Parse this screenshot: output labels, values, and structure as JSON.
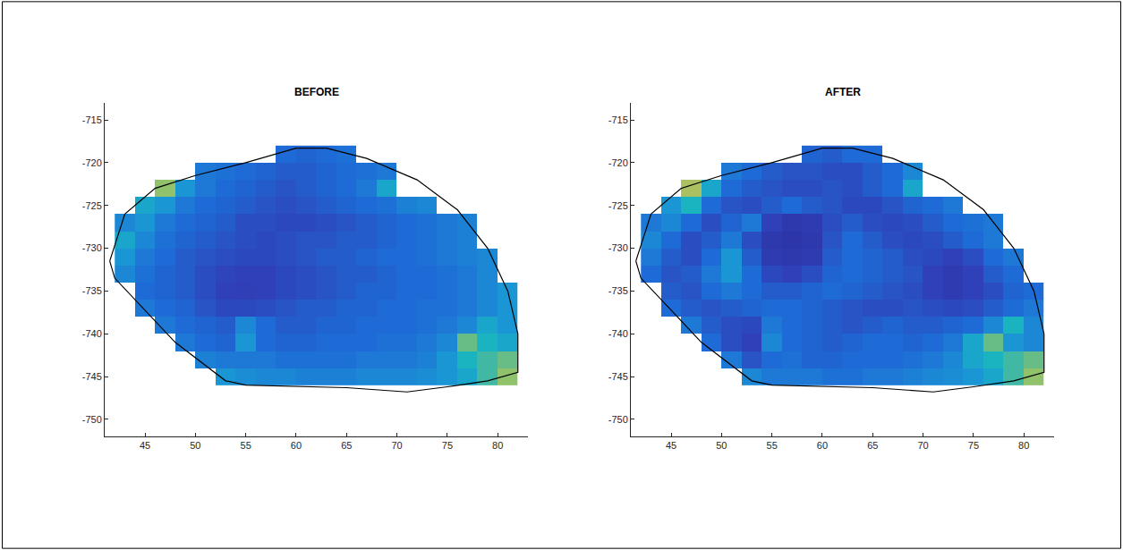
{
  "chart_data": [
    {
      "type": "heatmap",
      "title": "BEFORE",
      "x": [
        43,
        45,
        47,
        49,
        51,
        53,
        55,
        57,
        59,
        61,
        63,
        65,
        67,
        69,
        71,
        73,
        75,
        77,
        79,
        81
      ],
      "y": [
        -719,
        -721,
        -723,
        -725,
        -727,
        -729,
        -731,
        -733,
        -735,
        -737,
        -739,
        -741,
        -743,
        -745
      ],
      "z": [
        [
          null,
          null,
          null,
          null,
          null,
          null,
          null,
          null,
          0.3,
          0.28,
          0.3,
          0.32,
          null,
          null,
          null,
          null,
          null,
          null,
          null,
          null
        ],
        [
          null,
          null,
          null,
          null,
          0.35,
          0.32,
          0.3,
          0.28,
          0.25,
          0.25,
          0.28,
          0.3,
          0.32,
          0.35,
          null,
          null,
          null,
          null,
          null,
          null
        ],
        [
          null,
          null,
          0.7,
          0.45,
          0.35,
          0.3,
          0.28,
          0.25,
          0.22,
          0.25,
          0.28,
          0.3,
          0.35,
          0.5,
          null,
          null,
          null,
          null,
          null,
          null
        ],
        [
          null,
          0.5,
          0.45,
          0.35,
          0.3,
          0.28,
          0.25,
          0.22,
          0.2,
          0.22,
          0.25,
          0.28,
          0.3,
          0.32,
          0.38,
          0.4,
          null,
          null,
          null,
          null
        ],
        [
          0.4,
          0.45,
          0.35,
          0.3,
          0.28,
          0.25,
          0.2,
          0.2,
          0.18,
          0.18,
          0.2,
          0.22,
          0.25,
          0.28,
          0.3,
          0.32,
          0.35,
          0.38,
          null,
          null
        ],
        [
          0.5,
          0.4,
          0.32,
          0.28,
          0.25,
          0.22,
          0.2,
          0.18,
          0.2,
          0.22,
          0.22,
          0.25,
          0.25,
          0.28,
          0.3,
          0.32,
          0.35,
          0.38,
          null,
          null
        ],
        [
          0.45,
          0.35,
          0.3,
          0.25,
          0.22,
          0.2,
          0.18,
          0.18,
          0.2,
          0.22,
          0.25,
          0.25,
          0.28,
          0.3,
          0.3,
          0.32,
          0.35,
          0.38,
          0.4,
          null
        ],
        [
          0.4,
          0.32,
          0.28,
          0.25,
          0.2,
          0.16,
          0.15,
          0.15,
          0.18,
          0.2,
          0.22,
          0.25,
          0.25,
          0.28,
          0.3,
          0.3,
          0.32,
          0.35,
          0.4,
          null
        ],
        [
          null,
          0.3,
          0.28,
          0.25,
          0.2,
          0.15,
          0.14,
          0.15,
          0.18,
          0.2,
          0.22,
          0.25,
          0.28,
          0.28,
          0.3,
          0.3,
          0.32,
          0.35,
          0.4,
          0.45
        ],
        [
          null,
          0.35,
          0.3,
          0.28,
          0.22,
          0.18,
          0.18,
          0.2,
          0.22,
          0.25,
          0.25,
          0.28,
          0.28,
          0.3,
          0.3,
          0.32,
          0.32,
          0.35,
          0.4,
          0.45
        ],
        [
          null,
          null,
          0.35,
          0.3,
          0.28,
          0.25,
          0.4,
          0.3,
          0.25,
          0.25,
          0.28,
          0.28,
          0.3,
          0.3,
          0.3,
          0.32,
          0.35,
          0.4,
          0.5,
          0.45
        ],
        [
          null,
          null,
          null,
          0.35,
          0.3,
          0.28,
          0.45,
          0.3,
          0.28,
          0.28,
          0.3,
          0.3,
          0.3,
          0.32,
          0.32,
          0.35,
          0.4,
          0.65,
          0.55,
          0.5
        ],
        [
          null,
          null,
          null,
          null,
          0.38,
          0.35,
          0.35,
          0.35,
          0.32,
          0.32,
          0.32,
          0.32,
          0.35,
          0.35,
          0.35,
          0.38,
          0.45,
          0.55,
          0.6,
          0.65
        ],
        [
          null,
          null,
          null,
          null,
          null,
          0.45,
          0.42,
          0.4,
          0.4,
          0.38,
          0.38,
          0.38,
          0.4,
          0.4,
          0.4,
          0.42,
          0.45,
          0.5,
          0.6,
          0.7
        ]
      ],
      "clim": [
        0,
        1
      ],
      "outline": {
        "x": [
          41.5,
          43,
          46,
          50,
          55,
          60,
          63,
          67,
          72,
          76,
          79,
          81,
          82,
          82,
          79,
          75,
          71,
          65,
          55,
          53,
          48,
          44,
          42,
          41.5
        ],
        "y": [
          -731.5,
          -726,
          -723,
          -721.5,
          -720,
          -718.3,
          -718.3,
          -719.5,
          -722,
          -725.5,
          -730,
          -735,
          -740,
          -744.5,
          -745.5,
          -746.2,
          -746.8,
          -746.3,
          -746,
          -745.5,
          -741,
          -736,
          -733.5,
          -731.5
        ]
      },
      "xlim": [
        41,
        83
      ],
      "ylim": [
        -752,
        -713
      ],
      "xticks": [
        45,
        50,
        55,
        60,
        65,
        70,
        75,
        80
      ],
      "yticks": [
        -715,
        -720,
        -725,
        -730,
        -735,
        -740,
        -745,
        -750
      ],
      "grid": false
    },
    {
      "type": "heatmap",
      "title": "AFTER",
      "x": [
        43,
        45,
        47,
        49,
        51,
        53,
        55,
        57,
        59,
        61,
        63,
        65,
        67,
        69,
        71,
        73,
        75,
        77,
        79,
        81
      ],
      "y": [
        -719,
        -721,
        -723,
        -725,
        -727,
        -729,
        -731,
        -733,
        -735,
        -737,
        -739,
        -741,
        -743,
        -745
      ],
      "z": [
        [
          null,
          null,
          null,
          null,
          null,
          null,
          null,
          null,
          0.28,
          0.25,
          0.3,
          0.3,
          null,
          null,
          null,
          null,
          null,
          null,
          null,
          null
        ],
        [
          null,
          null,
          null,
          null,
          0.35,
          0.3,
          0.25,
          0.22,
          0.22,
          0.2,
          0.2,
          0.25,
          0.3,
          0.4,
          null,
          null,
          null,
          null,
          null,
          null
        ],
        [
          null,
          null,
          0.75,
          0.5,
          0.3,
          0.25,
          0.22,
          0.2,
          0.2,
          0.22,
          0.2,
          0.25,
          0.3,
          0.5,
          null,
          null,
          null,
          null,
          null,
          null
        ],
        [
          null,
          0.45,
          0.55,
          0.3,
          0.22,
          0.2,
          0.25,
          0.3,
          0.25,
          0.22,
          0.18,
          0.18,
          0.22,
          0.28,
          0.3,
          0.35,
          null,
          null,
          null,
          null
        ],
        [
          0.35,
          0.4,
          0.3,
          0.2,
          0.28,
          0.35,
          0.15,
          0.1,
          0.12,
          0.2,
          0.25,
          0.2,
          0.18,
          0.2,
          0.25,
          0.3,
          0.32,
          0.35,
          null,
          null
        ],
        [
          0.4,
          0.3,
          0.2,
          0.25,
          0.35,
          0.2,
          0.1,
          0.08,
          0.1,
          0.22,
          0.3,
          0.25,
          0.2,
          0.18,
          0.2,
          0.25,
          0.3,
          0.35,
          null,
          null
        ],
        [
          0.35,
          0.25,
          0.2,
          0.3,
          0.45,
          0.25,
          0.12,
          0.1,
          0.12,
          0.25,
          0.3,
          0.28,
          0.25,
          0.2,
          0.18,
          0.15,
          0.2,
          0.3,
          0.35,
          null
        ],
        [
          0.3,
          0.22,
          0.25,
          0.35,
          0.45,
          0.3,
          0.18,
          0.15,
          0.2,
          0.28,
          0.3,
          0.28,
          0.25,
          0.22,
          0.15,
          0.12,
          0.15,
          0.25,
          0.3,
          null
        ],
        [
          null,
          0.25,
          0.22,
          0.3,
          0.35,
          0.3,
          0.25,
          0.25,
          0.28,
          0.3,
          0.28,
          0.25,
          0.22,
          0.2,
          0.15,
          0.12,
          0.15,
          0.2,
          0.28,
          0.3
        ],
        [
          null,
          0.3,
          0.25,
          0.22,
          0.25,
          0.28,
          0.3,
          0.3,
          0.28,
          0.25,
          0.22,
          0.2,
          0.2,
          0.22,
          0.2,
          0.18,
          0.2,
          0.25,
          0.3,
          0.35
        ],
        [
          null,
          null,
          0.35,
          0.25,
          0.2,
          0.18,
          0.35,
          0.3,
          0.28,
          0.25,
          0.22,
          0.25,
          0.28,
          0.25,
          0.25,
          0.28,
          0.3,
          0.4,
          0.55,
          0.4
        ],
        [
          null,
          null,
          null,
          0.3,
          0.2,
          0.15,
          0.4,
          0.3,
          0.28,
          0.25,
          0.28,
          0.3,
          0.3,
          0.28,
          0.3,
          0.35,
          0.5,
          0.65,
          0.45,
          0.4
        ],
        [
          null,
          null,
          null,
          null,
          0.35,
          0.22,
          0.3,
          0.32,
          0.28,
          0.28,
          0.3,
          0.3,
          0.3,
          0.32,
          0.35,
          0.4,
          0.5,
          0.55,
          0.6,
          0.65
        ],
        [
          null,
          null,
          null,
          null,
          null,
          0.4,
          0.35,
          0.35,
          0.35,
          0.32,
          0.32,
          0.35,
          0.35,
          0.38,
          0.4,
          0.42,
          0.45,
          0.5,
          0.6,
          0.7
        ]
      ],
      "clim": [
        0,
        1
      ],
      "outline": {
        "x": [
          41.5,
          43,
          46,
          50,
          55,
          60,
          63,
          67,
          72,
          76,
          79,
          81,
          82,
          82,
          79,
          75,
          71,
          65,
          55,
          53,
          48,
          44,
          42,
          41.5
        ],
        "y": [
          -731.5,
          -726,
          -723,
          -721.5,
          -720,
          -718.3,
          -718.3,
          -719.5,
          -722,
          -725.5,
          -730,
          -735,
          -740,
          -744.5,
          -745.5,
          -746.2,
          -746.8,
          -746.3,
          -746,
          -745.5,
          -741,
          -736,
          -733.5,
          -731.5
        ]
      },
      "xlim": [
        41,
        83
      ],
      "ylim": [
        -752,
        -713
      ],
      "xticks": [
        45,
        50,
        55,
        60,
        65,
        70,
        75,
        80
      ],
      "yticks": [
        -715,
        -720,
        -725,
        -730,
        -735,
        -740,
        -745,
        -750
      ],
      "grid": false
    }
  ]
}
